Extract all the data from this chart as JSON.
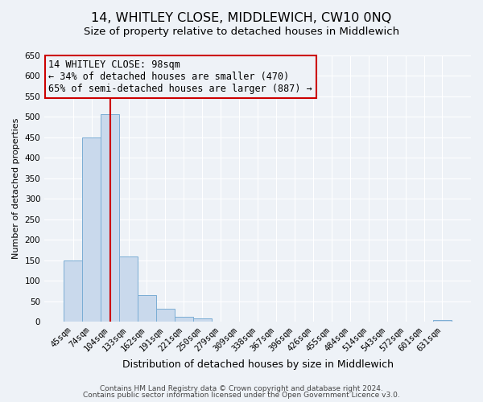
{
  "title": "14, WHITLEY CLOSE, MIDDLEWICH, CW10 0NQ",
  "subtitle": "Size of property relative to detached houses in Middlewich",
  "xlabel": "Distribution of detached houses by size in Middlewich",
  "ylabel": "Number of detached properties",
  "bin_labels": [
    "45sqm",
    "74sqm",
    "104sqm",
    "133sqm",
    "162sqm",
    "191sqm",
    "221sqm",
    "250sqm",
    "279sqm",
    "309sqm",
    "338sqm",
    "367sqm",
    "396sqm",
    "426sqm",
    "455sqm",
    "484sqm",
    "514sqm",
    "543sqm",
    "572sqm",
    "601sqm",
    "631sqm"
  ],
  "bar_values": [
    150,
    450,
    507,
    160,
    65,
    32,
    13,
    8,
    0,
    0,
    0,
    0,
    0,
    0,
    0,
    0,
    0,
    0,
    0,
    0,
    5
  ],
  "bar_color": "#c9d9ec",
  "bar_edge_color": "#7aadd4",
  "ylim": [
    0,
    650
  ],
  "yticks": [
    0,
    50,
    100,
    150,
    200,
    250,
    300,
    350,
    400,
    450,
    500,
    550,
    600,
    650
  ],
  "vline_x": 2.0,
  "vline_color": "#cc0000",
  "annotation_title": "14 WHITLEY CLOSE: 98sqm",
  "annotation_line1": "← 34% of detached houses are smaller (470)",
  "annotation_line2": "65% of semi-detached houses are larger (887) →",
  "annotation_box_color": "#cc0000",
  "footer1": "Contains HM Land Registry data © Crown copyright and database right 2024.",
  "footer2": "Contains public sector information licensed under the Open Government Licence v3.0.",
  "background_color": "#eef2f7",
  "grid_color": "#ffffff",
  "title_fontsize": 11.5,
  "subtitle_fontsize": 9.5,
  "xlabel_fontsize": 9,
  "ylabel_fontsize": 8,
  "tick_fontsize": 7.5,
  "annotation_fontsize": 8.5,
  "footer_fontsize": 6.5
}
